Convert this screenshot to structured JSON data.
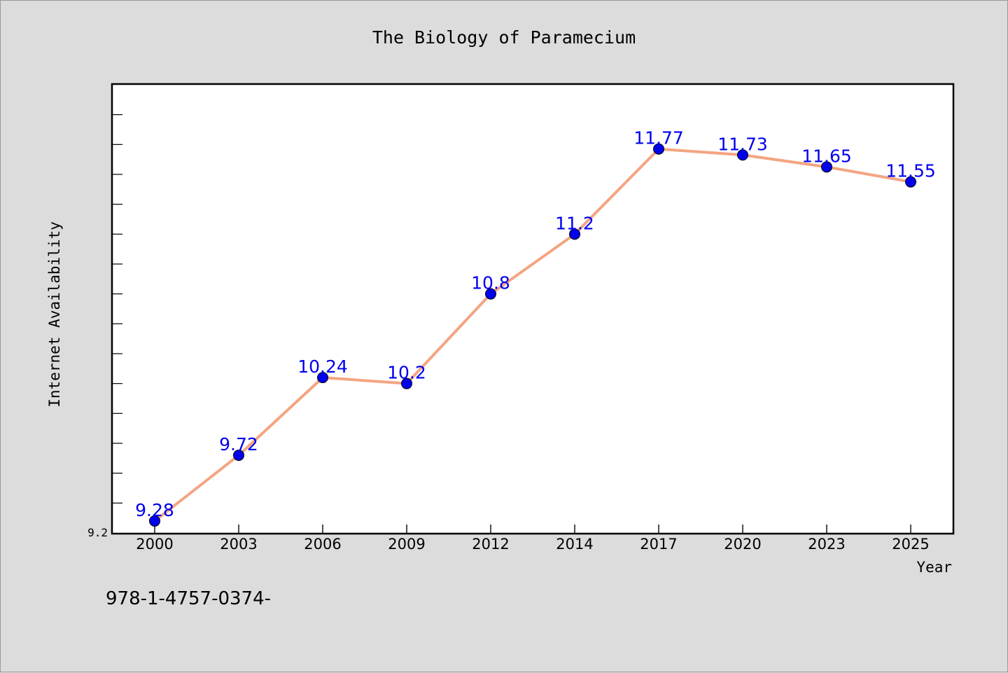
{
  "chart_data": {
    "type": "line",
    "title": "The Biology of Paramecium",
    "xlabel": "Year",
    "ylabel": "Internet Availability",
    "categories": [
      "2000",
      "2003",
      "2006",
      "2009",
      "2012",
      "2014",
      "2017",
      "2020",
      "2023",
      "2025"
    ],
    "series": [
      {
        "values": [
          9.28,
          9.72,
          10.24,
          10.2,
          10.8,
          11.2,
          11.77,
          11.73,
          11.65,
          11.55
        ],
        "labels": [
          "9.28",
          "9.72",
          "10.24",
          "10.2",
          "10.8",
          "11.2",
          "11.77",
          "11.73",
          "11.65",
          "11.55"
        ]
      }
    ],
    "ylim": [
      9.2,
      12.2
    ],
    "y_tick_labels": [
      "9.2"
    ],
    "y_minor_tick_step": 0.2,
    "grid": false,
    "colors": {
      "line": "#f4a582",
      "marker": "#0000ee",
      "data_label": "#0000ee",
      "plot_background": "#ffffff",
      "figure_background": "#dcdcdc"
    }
  },
  "footnote": "978-1-4757-0374-"
}
